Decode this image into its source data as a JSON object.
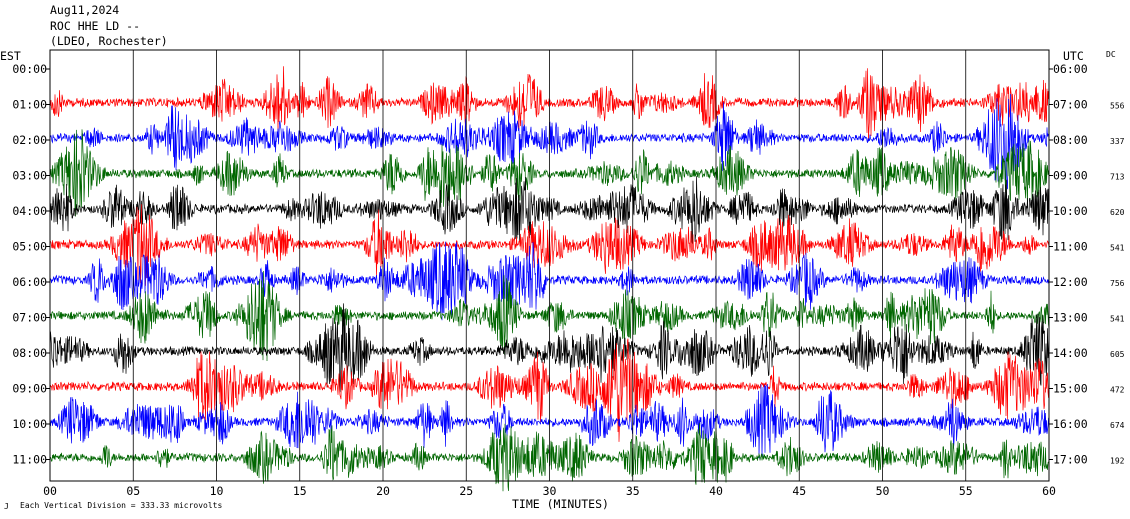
{
  "header": {
    "date": "Aug11,2024",
    "station": "ROC HHE LD --",
    "network": "(LDEO, Rochester)"
  },
  "left_axis_title": "EST",
  "right_axis_title": "UTC",
  "dc_title": "DC",
  "footer": {
    "xlabel": "TIME (MINUTES)",
    "scale_note": "Each Vertical Division =  333.33 microvolts"
  },
  "colors": {
    "red": "#ff0000",
    "blue": "#0000ff",
    "green": "#006600",
    "black": "#000000",
    "grid": "#000000"
  },
  "chart_data": {
    "type": "line",
    "title": "ROC HHE LD -- (LDEO, Rochester) Aug11,2024",
    "xlabel": "TIME (MINUTES)",
    "xlim": [
      0,
      60
    ],
    "x_ticks": [
      "00",
      "05",
      "10",
      "15",
      "20",
      "25",
      "30",
      "35",
      "40",
      "45",
      "50",
      "55",
      "60"
    ],
    "rows": [
      {
        "est": "00:00",
        "utc": "06:00",
        "dc": "",
        "color": "red"
      },
      {
        "est": "01:00",
        "utc": "07:00",
        "dc": "556",
        "color": "blue"
      },
      {
        "est": "02:00",
        "utc": "08:00",
        "dc": "337",
        "color": "green"
      },
      {
        "est": "03:00",
        "utc": "09:00",
        "dc": "713",
        "color": "black"
      },
      {
        "est": "04:00",
        "utc": "10:00",
        "dc": "620",
        "color": "red"
      },
      {
        "est": "05:00",
        "utc": "11:00",
        "dc": "541",
        "color": "blue"
      },
      {
        "est": "06:00",
        "utc": "12:00",
        "dc": "756",
        "color": "green"
      },
      {
        "est": "07:00",
        "utc": "13:00",
        "dc": "541",
        "color": "black"
      },
      {
        "est": "08:00",
        "utc": "14:00",
        "dc": "605",
        "color": "red"
      },
      {
        "est": "09:00",
        "utc": "15:00",
        "dc": "472",
        "color": "blue"
      },
      {
        "est": "10:00",
        "utc": "16:00",
        "dc": "674",
        "color": "green"
      },
      {
        "est": "11:00",
        "utc": "17:00",
        "dc": "192",
        "color": ""
      }
    ]
  }
}
